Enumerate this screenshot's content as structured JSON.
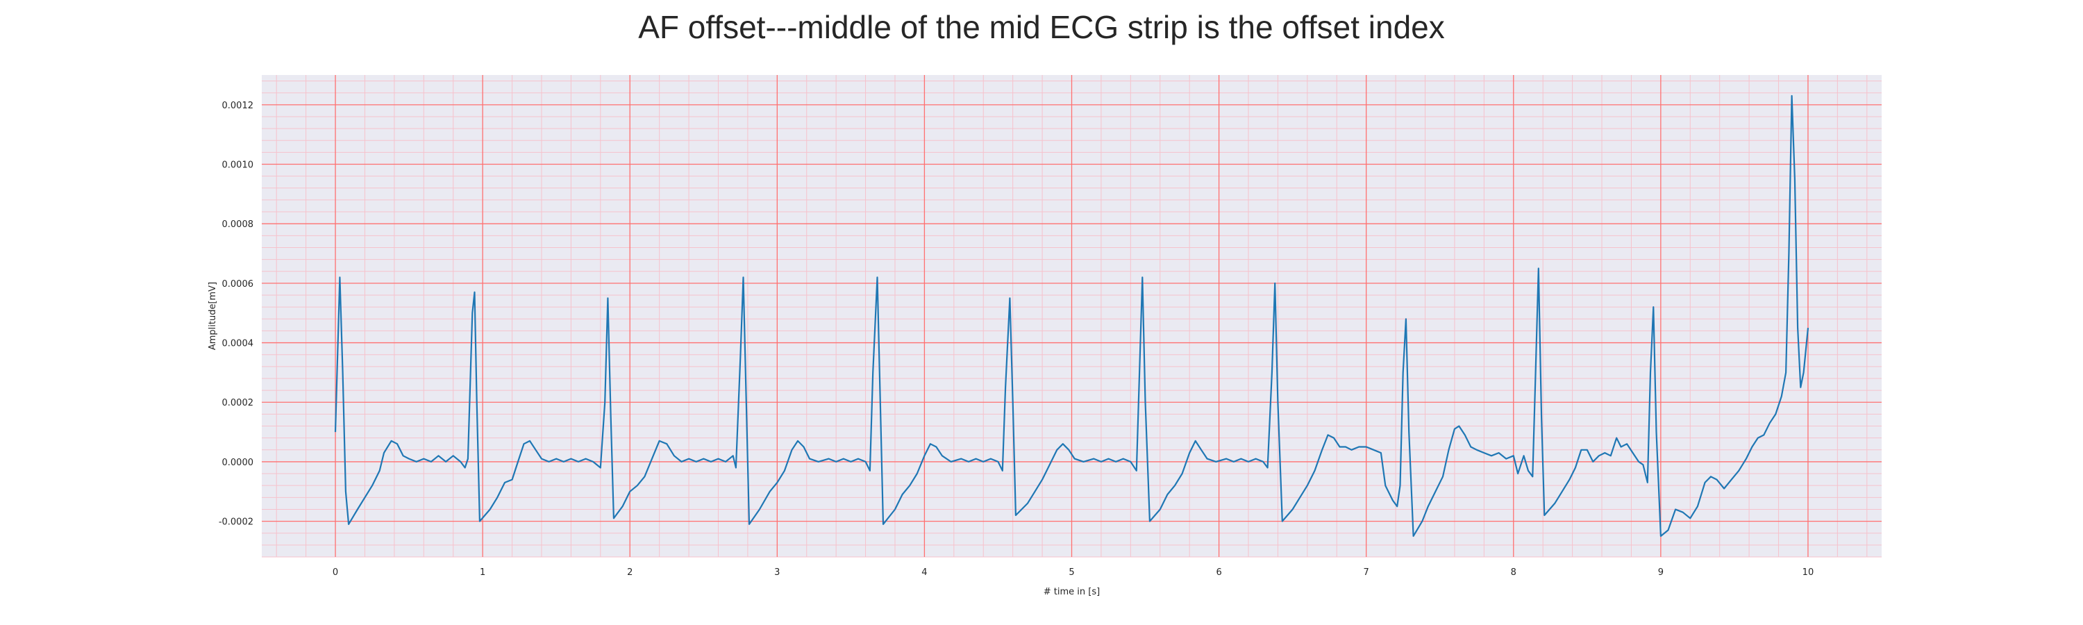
{
  "chart_data": {
    "type": "line",
    "title": "AF offset---middle of the mid ECG strip is the offset index",
    "xlabel": "# time in [s]",
    "ylabel": "Amplitude[mV]",
    "xlim": [
      -0.5,
      10.5
    ],
    "ylim": [
      -0.00032,
      0.0013
    ],
    "xticks": [
      0,
      1,
      2,
      3,
      4,
      5,
      6,
      7,
      8,
      9,
      10
    ],
    "xtick_labels": [
      "0",
      "1",
      "2",
      "3",
      "4",
      "5",
      "6",
      "7",
      "8",
      "9",
      "10"
    ],
    "yticks": [
      -0.0002,
      0.0,
      0.0002,
      0.0004,
      0.0006,
      0.0008,
      0.001,
      0.0012
    ],
    "ytick_labels": [
      "-0.0002",
      "0.0000",
      "0.0002",
      "0.0004",
      "0.0006",
      "0.0008",
      "0.0010",
      "0.0012"
    ],
    "grid": true,
    "colors": {
      "background": "#eaeaf2",
      "major_grid": "#ff7070",
      "minor_grid": "#f6c2cc",
      "line": "#1f77b4"
    },
    "series": [
      {
        "values": [
          [
            0.0,
            0.0001
          ],
          [
            0.02,
            0.00045
          ],
          [
            0.03,
            0.00062
          ],
          [
            0.05,
            0.0003
          ],
          [
            0.07,
            -0.0001
          ],
          [
            0.09,
            -0.00021
          ],
          [
            0.15,
            -0.00016
          ],
          [
            0.2,
            -0.00012
          ],
          [
            0.25,
            -8e-05
          ],
          [
            0.3,
            -3e-05
          ],
          [
            0.33,
            3e-05
          ],
          [
            0.38,
            7e-05
          ],
          [
            0.42,
            6e-05
          ],
          [
            0.46,
            2e-05
          ],
          [
            0.5,
            1e-05
          ],
          [
            0.55,
            0.0
          ],
          [
            0.6,
            1e-05
          ],
          [
            0.65,
            0.0
          ],
          [
            0.7,
            2e-05
          ],
          [
            0.75,
            0.0
          ],
          [
            0.8,
            2e-05
          ],
          [
            0.85,
            0.0
          ],
          [
            0.88,
            -2e-05
          ],
          [
            0.9,
            1e-05
          ],
          [
            0.93,
            0.0005
          ],
          [
            0.945,
            0.00057
          ],
          [
            0.96,
            0.0002
          ],
          [
            0.98,
            -0.0002
          ],
          [
            1.05,
            -0.00016
          ],
          [
            1.1,
            -0.00012
          ],
          [
            1.15,
            -7e-05
          ],
          [
            1.2,
            -6e-05
          ],
          [
            1.24,
            0.0
          ],
          [
            1.28,
            6e-05
          ],
          [
            1.32,
            7e-05
          ],
          [
            1.36,
            4e-05
          ],
          [
            1.4,
            1e-05
          ],
          [
            1.45,
            0.0
          ],
          [
            1.5,
            1e-05
          ],
          [
            1.55,
            0.0
          ],
          [
            1.6,
            1e-05
          ],
          [
            1.65,
            0.0
          ],
          [
            1.7,
            1e-05
          ],
          [
            1.75,
            0.0
          ],
          [
            1.8,
            -2e-05
          ],
          [
            1.83,
            0.0002
          ],
          [
            1.85,
            0.00055
          ],
          [
            1.87,
            0.00015
          ],
          [
            1.89,
            -0.00019
          ],
          [
            1.95,
            -0.00015
          ],
          [
            2.0,
            -0.0001
          ],
          [
            2.05,
            -8e-05
          ],
          [
            2.1,
            -5e-05
          ],
          [
            2.15,
            1e-05
          ],
          [
            2.2,
            7e-05
          ],
          [
            2.25,
            6e-05
          ],
          [
            2.3,
            2e-05
          ],
          [
            2.35,
            0.0
          ],
          [
            2.4,
            1e-05
          ],
          [
            2.45,
            0.0
          ],
          [
            2.5,
            1e-05
          ],
          [
            2.55,
            0.0
          ],
          [
            2.6,
            1e-05
          ],
          [
            2.65,
            0.0
          ],
          [
            2.7,
            2e-05
          ],
          [
            2.72,
            -2e-05
          ],
          [
            2.75,
            0.00035
          ],
          [
            2.77,
            0.00062
          ],
          [
            2.79,
            0.0002
          ],
          [
            2.81,
            -0.00021
          ],
          [
            2.88,
            -0.00016
          ],
          [
            2.95,
            -0.0001
          ],
          [
            3.0,
            -7e-05
          ],
          [
            3.05,
            -3e-05
          ],
          [
            3.1,
            4e-05
          ],
          [
            3.14,
            7e-05
          ],
          [
            3.18,
            5e-05
          ],
          [
            3.22,
            1e-05
          ],
          [
            3.28,
            0.0
          ],
          [
            3.35,
            1e-05
          ],
          [
            3.4,
            0.0
          ],
          [
            3.45,
            1e-05
          ],
          [
            3.5,
            0.0
          ],
          [
            3.55,
            1e-05
          ],
          [
            3.6,
            0.0
          ],
          [
            3.63,
            -3e-05
          ],
          [
            3.65,
            0.0003
          ],
          [
            3.68,
            0.00062
          ],
          [
            3.7,
            0.0002
          ],
          [
            3.72,
            -0.00021
          ],
          [
            3.8,
            -0.00016
          ],
          [
            3.85,
            -0.00011
          ],
          [
            3.9,
            -8e-05
          ],
          [
            3.95,
            -4e-05
          ],
          [
            4.0,
            2e-05
          ],
          [
            4.04,
            6e-05
          ],
          [
            4.08,
            5e-05
          ],
          [
            4.12,
            2e-05
          ],
          [
            4.18,
            0.0
          ],
          [
            4.25,
            1e-05
          ],
          [
            4.3,
            0.0
          ],
          [
            4.35,
            1e-05
          ],
          [
            4.4,
            0.0
          ],
          [
            4.45,
            1e-05
          ],
          [
            4.5,
            0.0
          ],
          [
            4.53,
            -3e-05
          ],
          [
            4.55,
            0.00025
          ],
          [
            4.58,
            0.00055
          ],
          [
            4.6,
            0.0002
          ],
          [
            4.62,
            -0.00018
          ],
          [
            4.7,
            -0.00014
          ],
          [
            4.75,
            -0.0001
          ],
          [
            4.8,
            -6e-05
          ],
          [
            4.85,
            -1e-05
          ],
          [
            4.9,
            4e-05
          ],
          [
            4.94,
            6e-05
          ],
          [
            4.98,
            4e-05
          ],
          [
            5.02,
            1e-05
          ],
          [
            5.08,
            0.0
          ],
          [
            5.15,
            1e-05
          ],
          [
            5.2,
            0.0
          ],
          [
            5.25,
            1e-05
          ],
          [
            5.3,
            0.0
          ],
          [
            5.35,
            1e-05
          ],
          [
            5.4,
            0.0
          ],
          [
            5.44,
            -3e-05
          ],
          [
            5.46,
            0.0003
          ],
          [
            5.48,
            0.00062
          ],
          [
            5.5,
            0.0002
          ],
          [
            5.53,
            -0.0002
          ],
          [
            5.6,
            -0.00016
          ],
          [
            5.65,
            -0.00011
          ],
          [
            5.7,
            -8e-05
          ],
          [
            5.75,
            -4e-05
          ],
          [
            5.8,
            3e-05
          ],
          [
            5.84,
            7e-05
          ],
          [
            5.88,
            4e-05
          ],
          [
            5.92,
            1e-05
          ],
          [
            5.98,
            0.0
          ],
          [
            6.05,
            1e-05
          ],
          [
            6.1,
            0.0
          ],
          [
            6.15,
            1e-05
          ],
          [
            6.2,
            0.0
          ],
          [
            6.25,
            1e-05
          ],
          [
            6.3,
            0.0
          ],
          [
            6.33,
            -2e-05
          ],
          [
            6.36,
            0.0003
          ],
          [
            6.38,
            0.0006
          ],
          [
            6.4,
            0.0002
          ],
          [
            6.43,
            -0.0002
          ],
          [
            6.5,
            -0.00016
          ],
          [
            6.55,
            -0.00012
          ],
          [
            6.6,
            -8e-05
          ],
          [
            6.65,
            -3e-05
          ],
          [
            6.7,
            4e-05
          ],
          [
            6.74,
            9e-05
          ],
          [
            6.78,
            8e-05
          ],
          [
            6.82,
            5e-05
          ],
          [
            6.86,
            5e-05
          ],
          [
            6.9,
            4e-05
          ],
          [
            6.95,
            5e-05
          ],
          [
            7.0,
            5e-05
          ],
          [
            7.05,
            4e-05
          ],
          [
            7.1,
            3e-05
          ],
          [
            7.13,
            -8e-05
          ],
          [
            7.18,
            -0.00013
          ],
          [
            7.21,
            -0.00015
          ],
          [
            7.23,
            -8e-05
          ],
          [
            7.25,
            0.0003
          ],
          [
            7.27,
            0.00048
          ],
          [
            7.29,
            0.0001
          ],
          [
            7.32,
            -0.00025
          ],
          [
            7.38,
            -0.0002
          ],
          [
            7.42,
            -0.00015
          ],
          [
            7.47,
            -0.0001
          ],
          [
            7.52,
            -5e-05
          ],
          [
            7.56,
            4e-05
          ],
          [
            7.6,
            0.00011
          ],
          [
            7.63,
            0.00012
          ],
          [
            7.67,
            9e-05
          ],
          [
            7.71,
            5e-05
          ],
          [
            7.75,
            4e-05
          ],
          [
            7.8,
            3e-05
          ],
          [
            7.85,
            2e-05
          ],
          [
            7.9,
            3e-05
          ],
          [
            7.95,
            1e-05
          ],
          [
            8.0,
            2e-05
          ],
          [
            8.03,
            -4e-05
          ],
          [
            8.07,
            2e-05
          ],
          [
            8.1,
            -3e-05
          ],
          [
            8.13,
            -5e-05
          ],
          [
            8.15,
            0.0003
          ],
          [
            8.17,
            0.00065
          ],
          [
            8.19,
            0.00015
          ],
          [
            8.21,
            -0.00018
          ],
          [
            8.28,
            -0.00014
          ],
          [
            8.33,
            -0.0001
          ],
          [
            8.38,
            -6e-05
          ],
          [
            8.42,
            -2e-05
          ],
          [
            8.46,
            4e-05
          ],
          [
            8.5,
            4e-05
          ],
          [
            8.54,
            0.0
          ],
          [
            8.58,
            2e-05
          ],
          [
            8.62,
            3e-05
          ],
          [
            8.66,
            2e-05
          ],
          [
            8.7,
            8e-05
          ],
          [
            8.73,
            5e-05
          ],
          [
            8.77,
            6e-05
          ],
          [
            8.81,
            3e-05
          ],
          [
            8.85,
            0.0
          ],
          [
            8.88,
            -1e-05
          ],
          [
            8.91,
            -7e-05
          ],
          [
            8.93,
            0.0003
          ],
          [
            8.95,
            0.00052
          ],
          [
            8.97,
            0.0001
          ],
          [
            9.0,
            -0.00025
          ],
          [
            9.05,
            -0.00023
          ],
          [
            9.1,
            -0.00016
          ],
          [
            9.15,
            -0.00017
          ],
          [
            9.2,
            -0.00019
          ],
          [
            9.25,
            -0.00015
          ],
          [
            9.3,
            -7e-05
          ],
          [
            9.34,
            -5e-05
          ],
          [
            9.38,
            -6e-05
          ],
          [
            9.43,
            -9e-05
          ],
          [
            9.48,
            -6e-05
          ],
          [
            9.53,
            -3e-05
          ],
          [
            9.58,
            1e-05
          ],
          [
            9.62,
            5e-05
          ],
          [
            9.66,
            8e-05
          ],
          [
            9.7,
            9e-05
          ],
          [
            9.74,
            0.00013
          ],
          [
            9.78,
            0.00016
          ],
          [
            9.82,
            0.00022
          ],
          [
            9.85,
            0.0003
          ],
          [
            9.87,
            0.0007
          ],
          [
            9.89,
            0.00123
          ],
          [
            9.91,
            0.00095
          ],
          [
            9.93,
            0.00045
          ],
          [
            9.95,
            0.00025
          ],
          [
            9.97,
            0.0003
          ],
          [
            10.0,
            0.00045
          ]
        ]
      }
    ]
  }
}
